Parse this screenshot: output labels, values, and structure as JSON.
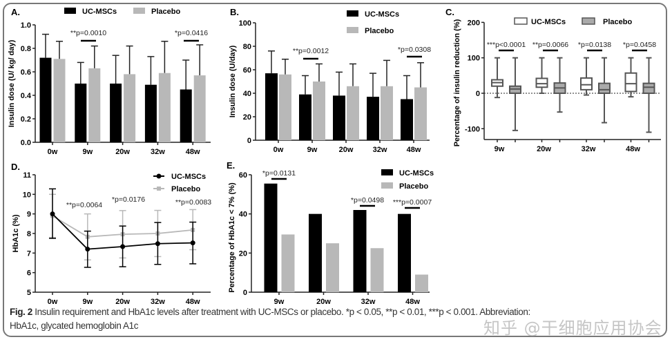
{
  "caption": {
    "label": "Fig. 2",
    "line1": "Insulin requirement and HbA1c levels after treatment with UC-MSCs or placebo. *p < 0.05, **p < 0.01, ***p < 0.001. Abbreviation:",
    "line2": "HbA1c, glycated hemoglobin A1c"
  },
  "watermark": "知乎 @干细胞应用协会",
  "colors": {
    "uc": "#000000",
    "placebo": "#b8b8b8",
    "box_placebo": "#aaaaaa",
    "box_uc": "#ffffff",
    "axis": "#222222"
  },
  "chart_data": [
    {
      "panel": "A.",
      "type": "bar",
      "ylabel": "Insulin dose (U/ kg/ day)",
      "ylim": [
        0,
        1.0
      ],
      "yticks": [
        "0.0",
        "0.2",
        "0.4",
        "0.6",
        "0.8",
        "1.0"
      ],
      "categories": [
        "0w",
        "9w",
        "20w",
        "32w",
        "48w"
      ],
      "series": [
        {
          "name": "UC-MSCs",
          "values": [
            0.72,
            0.5,
            0.5,
            0.49,
            0.45
          ],
          "error_upper": [
            0.92,
            0.68,
            0.74,
            0.73,
            0.7
          ]
        },
        {
          "name": "Placebo",
          "values": [
            0.71,
            0.63,
            0.58,
            0.59,
            0.57
          ],
          "error_upper": [
            0.86,
            0.82,
            0.82,
            0.86,
            0.83
          ]
        }
      ],
      "annotations": [
        {
          "category": "9w",
          "text": "**p=0.0010"
        },
        {
          "category": "48w",
          "text": "*p=0.0416"
        }
      ],
      "legend": "top"
    },
    {
      "panel": "B.",
      "type": "bar",
      "ylabel": "Insulin dose (U/day)",
      "ylim": [
        0,
        100
      ],
      "yticks": [
        "0",
        "20",
        "40",
        "60",
        "80",
        "100"
      ],
      "categories": [
        "0w",
        "9w",
        "20w",
        "32w",
        "48w"
      ],
      "series": [
        {
          "name": "UC-MSCs",
          "values": [
            57,
            39,
            38,
            37,
            35
          ],
          "error_upper": [
            76,
            55,
            58,
            57,
            55
          ]
        },
        {
          "name": "Placebo",
          "values": [
            56,
            50,
            46,
            46,
            45
          ],
          "error_upper": [
            69,
            65,
            65,
            68,
            66
          ]
        }
      ],
      "annotations": [
        {
          "category": "9w",
          "text": "**p=0.0012"
        },
        {
          "category": "48w",
          "text": "*p=0.0308"
        }
      ],
      "legend": "top-right"
    },
    {
      "panel": "C.",
      "type": "box",
      "ylabel": "Percentage of insulin reduction (%)",
      "ylim": [
        -130,
        200
      ],
      "yticks": [
        "-100",
        "0",
        "100",
        "200"
      ],
      "categories": [
        "9w",
        "20w",
        "32w",
        "48w"
      ],
      "series": [
        {
          "name": "UC-MSCs",
          "boxes": [
            [
              -12,
              20,
              30,
              38,
              100
            ],
            [
              0,
              17,
              27,
              42,
              100
            ],
            [
              -5,
              10,
              24,
              43,
              100
            ],
            [
              -10,
              5,
              27,
              57,
              100
            ]
          ]
        },
        {
          "name": "Placebo",
          "boxes": [
            [
              -105,
              0,
              12,
              20,
              100
            ],
            [
              -53,
              0,
              15,
              29,
              100
            ],
            [
              -83,
              0,
              10,
              28,
              100
            ],
            [
              -110,
              0,
              17,
              28,
              100
            ]
          ]
        }
      ],
      "annotations": [
        {
          "category": "9w",
          "text": "***p<0.0001"
        },
        {
          "category": "20w",
          "text": "**p=0.0066"
        },
        {
          "category": "32w",
          "text": "*p=0.0138"
        },
        {
          "category": "48w",
          "text": "*p=0.0458"
        }
      ],
      "reference_line": 0,
      "legend": "top"
    },
    {
      "panel": "D.",
      "type": "line",
      "ylabel": "HbA1c (%)",
      "ylim": [
        5,
        11
      ],
      "yticks": [
        "5",
        "6",
        "7",
        "8",
        "9",
        "10",
        "11"
      ],
      "categories": [
        "0w",
        "9w",
        "20w",
        "32w",
        "48w"
      ],
      "series": [
        {
          "name": "UC-MSCs",
          "values": [
            9.0,
            7.2,
            7.33,
            7.48,
            7.52
          ],
          "error_low": [
            7.75,
            6.27,
            6.3,
            6.42,
            6.45
          ],
          "error_high": [
            10.28,
            8.12,
            8.38,
            8.56,
            8.58
          ]
        },
        {
          "name": "Placebo",
          "values": [
            8.9,
            7.83,
            7.96,
            8.0,
            8.18
          ],
          "error_low": [
            7.8,
            6.65,
            6.75,
            6.82,
            7.17
          ],
          "error_high": [
            10.0,
            9.0,
            9.17,
            9.18,
            9.22
          ]
        }
      ],
      "annotations": [
        {
          "category": "9w",
          "text": "**p=0.0064"
        },
        {
          "category": "20w",
          "text": "*p=0.0176"
        },
        {
          "category": "48w",
          "text": "**p=0.0083"
        }
      ],
      "legend": "top-right"
    },
    {
      "panel": "E.",
      "type": "bar",
      "ylabel": "Percentage of HbA1c < 7% (%)",
      "ylim": [
        0,
        60
      ],
      "yticks": [
        "0",
        "20",
        "40",
        "60"
      ],
      "categories": [
        "9w",
        "20w",
        "32w",
        "48w"
      ],
      "series": [
        {
          "name": "UC-MSCs",
          "values": [
            55.5,
            40,
            42,
            40
          ]
        },
        {
          "name": "Placebo",
          "values": [
            29.5,
            25,
            22.5,
            9
          ]
        }
      ],
      "annotations": [
        {
          "category": "9w",
          "text": "*p=0.0131"
        },
        {
          "category": "32w",
          "text": "*p=0.0498"
        },
        {
          "category": "48w",
          "text": "***p=0.0007"
        }
      ],
      "legend": "top-right"
    }
  ]
}
